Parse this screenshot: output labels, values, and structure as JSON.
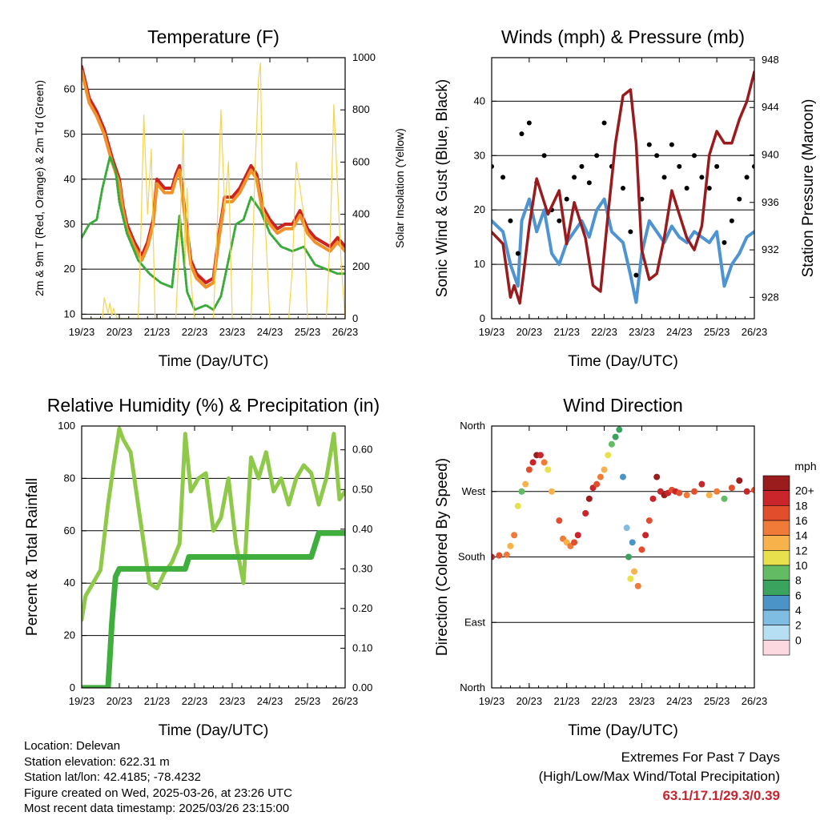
{
  "x_tick_labels": [
    "19/23",
    "20/23",
    "21/23",
    "22/23",
    "23/23",
    "24/23",
    "25/23",
    "26/23"
  ],
  "charts": [
    {
      "id": "temperature",
      "title": "Temperature (F)",
      "xlabel": "Time (Day/UTC)",
      "ylabel_left": "2m & 9m T (Red, Orange) & 2m Td (Green)",
      "ylabel_right": "Solar Insolation (Yellow)",
      "yticks_left": [
        "10",
        "20",
        "30",
        "40",
        "50",
        "60"
      ],
      "yticks_right": [
        "0",
        "200",
        "400",
        "600",
        "800",
        "1000"
      ]
    },
    {
      "id": "winds",
      "title": "Winds (mph) & Pressure (mb)",
      "xlabel": "Time (Day/UTC)",
      "ylabel_left": "Sonic Wind & Gust (Blue, Black)",
      "ylabel_right": "Station Pressure (Maroon)",
      "yticks_left": [
        "0",
        "10",
        "20",
        "30",
        "40"
      ],
      "yticks_right": [
        "928",
        "932",
        "936",
        "940",
        "944",
        "948"
      ]
    },
    {
      "id": "humidity",
      "title": "Relative Humidity (%) & Precipitation (in)",
      "xlabel": "Time (Day/UTC)",
      "ylabel_left": "Percent & Total Rainfall",
      "yticks_left": [
        "0",
        "20",
        "40",
        "60",
        "80",
        "100"
      ],
      "yticks_right": [
        "0.00",
        "0.10",
        "0.20",
        "0.30",
        "0.40",
        "0.50",
        "0.60"
      ]
    },
    {
      "id": "direction",
      "title": "Wind Direction",
      "xlabel": "Time (Day/UTC)",
      "ylabel_left": "Direction (Colored By Speed)",
      "yticks_left": [
        "North",
        "East",
        "South",
        "West",
        "North"
      ],
      "colorbar_title": "mph",
      "colorbar_labels": [
        "20+",
        "18",
        "16",
        "14",
        "12",
        "10",
        "8",
        "6",
        "4",
        "2",
        "0"
      ]
    }
  ],
  "chart_data": [
    {
      "type": "line",
      "title": "Temperature (F)",
      "xlabel": "Time (Day/UTC)",
      "ylabel": "2m & 9m T (Red, Orange) & 2m Td (Green)",
      "y2label": "Solar Insolation (Yellow)",
      "x_unit": "days since 19/23 UTC",
      "xlim": [
        0,
        7
      ],
      "ylim": [
        9,
        67
      ],
      "y2lim": [
        0,
        1000
      ],
      "series": [
        {
          "name": "2m T",
          "color": "#cc2222",
          "axis": "left",
          "x": [
            0,
            0.2,
            0.4,
            0.6,
            0.8,
            1.0,
            1.1,
            1.2,
            1.4,
            1.6,
            1.75,
            1.9,
            2.0,
            2.2,
            2.4,
            2.5,
            2.6,
            2.75,
            2.9,
            3.05,
            3.3,
            3.5,
            3.65,
            3.8,
            4.0,
            4.2,
            4.5,
            4.65,
            4.8,
            5.0,
            5.2,
            5.4,
            5.6,
            5.8,
            6.0,
            6.2,
            6.4,
            6.6,
            6.8,
            7.0
          ],
          "y": [
            65,
            58,
            55,
            51,
            45,
            40,
            34,
            30,
            26,
            23,
            26,
            31,
            40,
            38,
            38,
            41,
            43,
            32,
            22,
            19,
            17,
            18,
            28,
            36,
            36,
            38,
            43,
            41,
            34,
            31,
            29,
            30,
            30,
            33,
            29,
            27,
            26,
            25,
            27,
            25
          ]
        },
        {
          "name": "9m T",
          "color": "#f0922a",
          "axis": "left",
          "x": [
            0,
            0.2,
            0.4,
            0.6,
            0.8,
            1.0,
            1.1,
            1.2,
            1.4,
            1.6,
            1.75,
            1.9,
            2.0,
            2.2,
            2.4,
            2.5,
            2.6,
            2.75,
            2.9,
            3.05,
            3.3,
            3.5,
            3.65,
            3.8,
            4.0,
            4.2,
            4.5,
            4.65,
            4.8,
            5.0,
            5.2,
            5.4,
            5.6,
            5.8,
            6.0,
            6.2,
            6.4,
            6.6,
            6.8,
            7.0
          ],
          "y": [
            64,
            57,
            54,
            50,
            44,
            39,
            33,
            29,
            25,
            22,
            25,
            30,
            39,
            37,
            37,
            40,
            42,
            31,
            21,
            18,
            16,
            17,
            27,
            35,
            35,
            37,
            42,
            40,
            33,
            30,
            28,
            29,
            29,
            32,
            28,
            26,
            25,
            24,
            26,
            24
          ]
        },
        {
          "name": "2m Td",
          "color": "#3aaa3a",
          "axis": "left",
          "x": [
            0,
            0.2,
            0.4,
            0.55,
            0.75,
            0.9,
            1.0,
            1.2,
            1.5,
            1.8,
            2.1,
            2.4,
            2.6,
            2.8,
            3.0,
            3.3,
            3.5,
            3.7,
            3.9,
            4.1,
            4.3,
            4.5,
            4.75,
            5.0,
            5.3,
            5.6,
            5.9,
            6.2,
            6.5,
            6.8,
            7.0
          ],
          "y": [
            27,
            30,
            31,
            38,
            45,
            42,
            35,
            28,
            22,
            19,
            17,
            16,
            32,
            15,
            11,
            12,
            11,
            14,
            22,
            30,
            31,
            36,
            33,
            28,
            25,
            24,
            25,
            21,
            20,
            19,
            19
          ]
        },
        {
          "name": "Solar Insolation",
          "color": "#f7d44c",
          "axis": "right",
          "x": [
            0,
            0.55,
            0.6,
            0.7,
            0.75,
            0.8,
            0.85,
            0.9,
            0.95,
            1.5,
            1.55,
            1.65,
            1.75,
            1.85,
            1.95,
            2.5,
            2.6,
            2.7,
            2.75,
            2.8,
            2.9,
            3.0,
            3.5,
            3.6,
            3.7,
            3.8,
            3.9,
            4.0,
            4.5,
            4.6,
            4.7,
            4.75,
            4.8,
            4.9,
            5.0,
            5.5,
            5.6,
            5.7,
            5.8,
            5.9,
            6.0,
            6.5,
            6.6,
            6.7,
            6.8,
            6.9,
            7.0
          ],
          "y": [
            0,
            0,
            80,
            20,
            60,
            10,
            40,
            15,
            0,
            0,
            200,
            780,
            400,
            650,
            0,
            0,
            300,
            720,
            200,
            500,
            150,
            0,
            0,
            350,
            800,
            420,
            600,
            0,
            0,
            550,
            920,
            980,
            500,
            300,
            0,
            0,
            200,
            600,
            500,
            400,
            0,
            0,
            300,
            820,
            500,
            200,
            0
          ]
        }
      ]
    },
    {
      "type": "line",
      "title": "Winds (mph) & Pressure (mb)",
      "xlabel": "Time (Day/UTC)",
      "ylabel": "Sonic Wind & Gust (Blue, Black)",
      "y2label": "Station Pressure (Maroon)",
      "x_unit": "days since 19/23 UTC",
      "xlim": [
        0,
        7
      ],
      "ylim": [
        0,
        48
      ],
      "y2lim": [
        926.2,
        948.2
      ],
      "series": [
        {
          "name": "Sonic Wind",
          "color": "#4e93d2",
          "axis": "left",
          "x": [
            0,
            0.3,
            0.5,
            0.7,
            0.8,
            1.0,
            1.2,
            1.4,
            1.6,
            1.8,
            2.0,
            2.2,
            2.4,
            2.6,
            2.8,
            3.0,
            3.2,
            3.5,
            3.7,
            3.85,
            4.0,
            4.2,
            4.4,
            4.6,
            4.8,
            5.0,
            5.2,
            5.4,
            5.6,
            5.8,
            6.0,
            6.2,
            6.4,
            6.6,
            6.8,
            7.0
          ],
          "y": [
            18,
            16,
            10,
            6,
            18,
            22,
            16,
            20,
            12,
            10,
            14,
            16,
            18,
            15,
            20,
            22,
            16,
            14,
            8,
            3,
            12,
            18,
            16,
            14,
            17,
            15,
            14,
            16,
            15,
            14,
            16,
            6,
            10,
            12,
            15,
            16
          ]
        },
        {
          "name": "Gust",
          "color": "#000000",
          "axis": "left",
          "x": [
            0,
            0.3,
            0.5,
            0.7,
            0.8,
            1.0,
            1.2,
            1.4,
            1.6,
            1.8,
            2.0,
            2.2,
            2.4,
            2.6,
            2.8,
            3.0,
            3.2,
            3.5,
            3.7,
            3.85,
            4.0,
            4.2,
            4.4,
            4.6,
            4.8,
            5.0,
            5.2,
            5.4,
            5.6,
            5.8,
            6.0,
            6.2,
            6.4,
            6.6,
            6.8,
            7.0
          ],
          "y": [
            28,
            26,
            18,
            12,
            34,
            36,
            25,
            30,
            20,
            18,
            22,
            26,
            28,
            25,
            30,
            36,
            28,
            24,
            16,
            8,
            22,
            32,
            30,
            26,
            32,
            28,
            24,
            30,
            26,
            24,
            28,
            14,
            18,
            22,
            26,
            28
          ]
        },
        {
          "name": "Station Pressure",
          "color": "#991b1e",
          "axis": "right",
          "x": [
            0,
            0.3,
            0.5,
            0.6,
            0.75,
            0.85,
            1.0,
            1.2,
            1.5,
            1.8,
            2.0,
            2.2,
            2.5,
            2.7,
            2.9,
            3.1,
            3.3,
            3.5,
            3.7,
            3.85,
            4.0,
            4.2,
            4.4,
            4.6,
            4.8,
            5.0,
            5.2,
            5.4,
            5.6,
            5.8,
            6.0,
            6.2,
            6.4,
            6.6,
            6.8,
            7.0
          ],
          "y": [
            933.5,
            932.5,
            928,
            929,
            927.5,
            930,
            934,
            938,
            935,
            937,
            932.5,
            936,
            933,
            929,
            928.5,
            935,
            941,
            945,
            945.5,
            941,
            932,
            929.5,
            930,
            933,
            937,
            935,
            933,
            932,
            934,
            940,
            942,
            941,
            941,
            943,
            944.5,
            947
          ]
        }
      ]
    },
    {
      "type": "line",
      "title": "Relative Humidity (%) & Precipitation (in)",
      "xlabel": "Time (Day/UTC)",
      "ylabel": "Percent & Total Rainfall",
      "x_unit": "days since 19/23 UTC",
      "xlim": [
        0,
        7
      ],
      "ylim": [
        0,
        100
      ],
      "y2lim": [
        0,
        0.66
      ],
      "series": [
        {
          "name": "Relative Humidity",
          "color": "#8fc94a",
          "axis": "left",
          "x": [
            0,
            0.1,
            0.3,
            0.5,
            0.7,
            0.85,
            1.0,
            1.1,
            1.3,
            1.6,
            1.8,
            2.0,
            2.2,
            2.4,
            2.6,
            2.75,
            2.9,
            3.1,
            3.3,
            3.5,
            3.7,
            3.9,
            4.1,
            4.3,
            4.5,
            4.7,
            4.9,
            5.1,
            5.3,
            5.5,
            5.7,
            5.9,
            6.1,
            6.3,
            6.5,
            6.7,
            6.85,
            7.0
          ],
          "y": [
            26,
            35,
            40,
            45,
            70,
            85,
            99,
            95,
            90,
            60,
            40,
            38,
            44,
            48,
            55,
            97,
            75,
            80,
            82,
            60,
            65,
            80,
            55,
            40,
            88,
            80,
            90,
            75,
            80,
            70,
            80,
            85,
            82,
            70,
            80,
            97,
            72,
            75
          ]
        },
        {
          "name": "Total Precipitation",
          "color": "#3fae3d",
          "axis": "right",
          "x": [
            0,
            0.55,
            0.7,
            0.75,
            0.8,
            0.85,
            0.9,
            1.0,
            2.75,
            2.85,
            6.1,
            6.2,
            6.3,
            7.0
          ],
          "y": [
            0,
            0,
            0,
            0.08,
            0.16,
            0.22,
            0.28,
            0.3,
            0.3,
            0.33,
            0.33,
            0.36,
            0.39,
            0.39
          ]
        }
      ]
    },
    {
      "type": "scatter",
      "title": "Wind Direction",
      "xlabel": "Time (Day/UTC)",
      "ylabel": "Direction (Colored By Speed)",
      "x_unit": "days since 19/23 UTC",
      "y_unit": "degrees (0 = North, 90 = East, 180 = South, 270 = West, 360 = North)",
      "xlim": [
        0,
        7
      ],
      "ylim": [
        0,
        360
      ],
      "colorbar": {
        "title": "mph",
        "colors": [
          "#fcd8e1",
          "#b6dff4",
          "#80bde3",
          "#4b94c8",
          "#3aa35e",
          "#63bb63",
          "#e9e04d",
          "#f8b24b",
          "#f07b38",
          "#e24d2c",
          "#c9252b",
          "#9b1c1c"
        ]
      },
      "series": [
        {
          "name": "Direction",
          "x": [
            0,
            0.2,
            0.4,
            0.5,
            0.6,
            0.7,
            0.8,
            0.9,
            1.0,
            1.1,
            1.2,
            1.3,
            1.4,
            1.5,
            1.6,
            1.8,
            1.9,
            2.0,
            2.1,
            2.2,
            2.3,
            2.5,
            2.6,
            2.7,
            2.8,
            2.9,
            3.0,
            3.1,
            3.2,
            3.3,
            3.4,
            3.5,
            3.6,
            3.65,
            3.7,
            3.75,
            3.8,
            3.9,
            4.0,
            4.1,
            4.2,
            4.3,
            4.4,
            4.5,
            4.6,
            4.7,
            4.8,
            4.9,
            5.0,
            5.2,
            5.4,
            5.6,
            5.8,
            6.0,
            6.2,
            6.4,
            6.6,
            6.8,
            7.0
          ],
          "y": [
            180,
            182,
            183,
            195,
            210,
            250,
            270,
            280,
            300,
            310,
            320,
            320,
            310,
            300,
            270,
            230,
            205,
            200,
            195,
            200,
            210,
            240,
            260,
            275,
            280,
            290,
            300,
            320,
            335,
            345,
            355,
            290,
            220,
            180,
            150,
            200,
            160,
            140,
            190,
            210,
            230,
            260,
            290,
            270,
            265,
            268,
            272,
            270,
            268,
            265,
            270,
            280,
            265,
            270,
            260,
            275,
            285,
            270,
            272
          ],
          "speed": [
            18,
            16,
            15,
            12,
            14,
            10,
            8,
            12,
            16,
            18,
            20,
            18,
            14,
            10,
            12,
            16,
            14,
            12,
            14,
            16,
            18,
            18,
            20,
            18,
            16,
            14,
            12,
            10,
            8,
            6,
            6,
            4,
            2,
            6,
            10,
            4,
            12,
            14,
            16,
            18,
            16,
            18,
            20,
            18,
            20,
            18,
            16,
            18,
            16,
            14,
            16,
            18,
            12,
            14,
            8,
            16,
            20,
            18,
            16
          ]
        }
      ]
    }
  ],
  "info": {
    "location": "Location: Delevan",
    "elevation": "Station elevation: 622.31 m",
    "latlon": "Station lat/lon: 42.4185; -78.4232",
    "created": "Figure created on Wed, 2025-03-26, at 23:26 UTC",
    "recent": "Most recent data timestamp: 2025/03/26 23:15:00"
  },
  "extremes": {
    "line1": "Extremes For Past 7 Days",
    "line2": "(High/Low/Max Wind/Total Precipitation)",
    "values": "63.1/17.1/29.3/0.39"
  }
}
